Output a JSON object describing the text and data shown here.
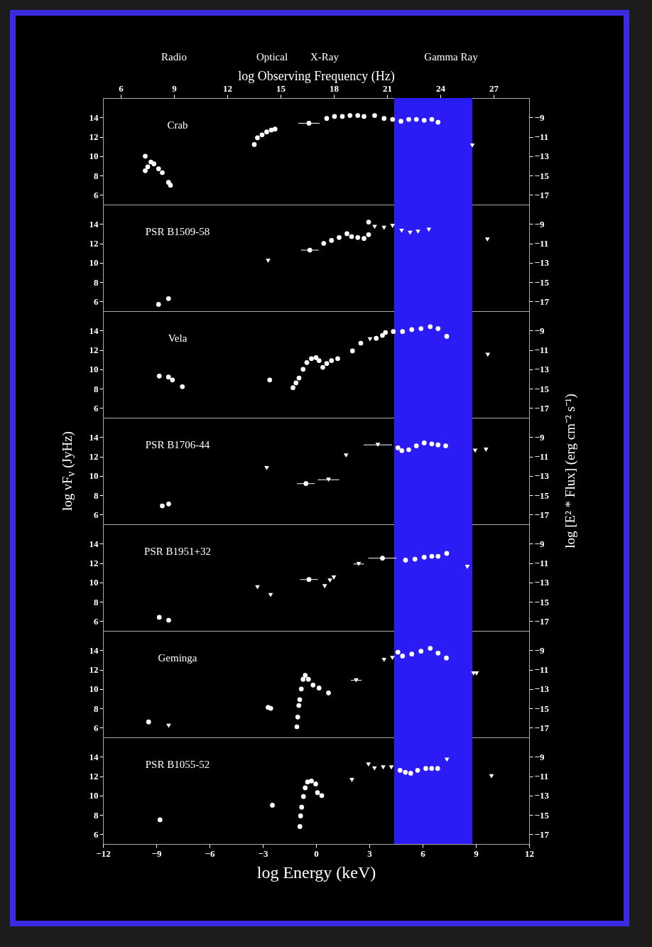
{
  "chart_data": [
    {
      "type": "scatter",
      "annotations": [
        "Crab",
        "Radio",
        "Optical",
        "X-Ray",
        "Gamma Ray"
      ],
      "x2label": "log Observing Frequency (Hz)",
      "x2lim": [
        5,
        29
      ],
      "x2ticks": [
        6,
        9,
        12,
        15,
        18,
        21,
        24,
        27
      ],
      "xlim": [
        -12,
        12
      ],
      "xticks": [
        -12,
        -9,
        -6,
        -3,
        0,
        3,
        6,
        9,
        12
      ],
      "ylim": [
        5,
        16
      ],
      "yticks": [
        6,
        8,
        10,
        12,
        14
      ],
      "y2lim": [
        -18,
        -7
      ],
      "y2ticks": [
        -17,
        -15,
        -13,
        -11,
        -9
      ],
      "tick_labels": "y",
      "bands": [
        {
          "axis": "x",
          "from": 4.4,
          "to": 8.8,
          "color": "#2b1cf5"
        }
      ],
      "series": [
        {
          "color": "#ffffff",
          "marker": "circle",
          "x": [
            -9.62,
            -9.62,
            -9.48,
            -9.3,
            -9.13,
            -8.87,
            -8.66,
            -8.31,
            -8.2,
            -3.48,
            -3.3,
            -3.04,
            -2.78,
            -2.52,
            -2.31,
            -0.4,
            0.6,
            1.04,
            1.48,
            1.91,
            2.35,
            2.7,
            3.3,
            3.83,
            4.31,
            4.78,
            5.22,
            5.65,
            6.09,
            6.52,
            6.87
          ],
          "values": [
            10.0,
            8.5,
            8.9,
            9.4,
            9.2,
            8.7,
            8.3,
            7.3,
            7.0,
            11.2,
            11.9,
            12.2,
            12.5,
            12.7,
            12.8,
            13.4,
            13.9,
            14.1,
            14.1,
            14.2,
            14.2,
            14.1,
            14.2,
            13.9,
            13.8,
            13.6,
            13.8,
            13.8,
            13.7,
            13.8,
            13.5
          ],
          "xerrors": [
            null,
            null,
            null,
            null,
            null,
            null,
            null,
            null,
            null,
            null,
            null,
            null,
            null,
            null,
            null,
            0.6,
            null,
            null,
            null,
            null,
            null,
            null,
            null,
            null,
            null,
            null,
            null,
            null,
            null,
            null,
            null
          ]
        },
        {
          "color": "#ffffff",
          "marker": "triangle",
          "x": [
            8.8
          ],
          "values": [
            11.1
          ]
        }
      ]
    },
    {
      "type": "scatter",
      "annotations": [
        "PSR B1509-58"
      ],
      "xlim": [
        -12,
        12
      ],
      "xticks": [
        -12,
        -9,
        -6,
        -3,
        0,
        3,
        6,
        9,
        12
      ],
      "ylim": [
        5,
        16
      ],
      "yticks": [
        6,
        8,
        10,
        12,
        14
      ],
      "y2lim": [
        -18,
        -7
      ],
      "y2ticks": [
        -17,
        -15,
        -13,
        -11,
        -9
      ],
      "tick_labels": "y",
      "bands": [
        {
          "axis": "x",
          "from": 4.4,
          "to": 8.8,
          "color": "#2b1cf5"
        }
      ],
      "series": [
        {
          "color": "#ffffff",
          "marker": "circle",
          "x": [
            -8.87,
            -8.31,
            -0.35,
            0.43,
            0.87,
            1.3,
            1.74,
            2.0,
            2.35,
            2.7,
            2.96,
            2.96
          ],
          "values": [
            5.7,
            6.3,
            11.3,
            12.0,
            12.3,
            12.6,
            13.0,
            12.7,
            12.6,
            12.5,
            12.9,
            14.2
          ],
          "xerrors": [
            null,
            null,
            0.5,
            null,
            null,
            null,
            null,
            null,
            null,
            null,
            null,
            null
          ]
        },
        {
          "color": "#ffffff",
          "marker": "triangle",
          "x": [
            -2.7,
            3.3,
            3.83,
            4.31,
            4.82,
            5.3,
            5.74,
            6.35,
            9.65
          ],
          "values": [
            10.2,
            13.7,
            13.6,
            13.8,
            13.3,
            13.1,
            13.2,
            13.4,
            12.4
          ]
        }
      ]
    },
    {
      "type": "scatter",
      "annotations": [
        "Vela"
      ],
      "xlim": [
        -12,
        12
      ],
      "xticks": [
        -12,
        -9,
        -6,
        -3,
        0,
        3,
        6,
        9,
        12
      ],
      "ylim": [
        5,
        16
      ],
      "yticks": [
        6,
        8,
        10,
        12,
        14
      ],
      "y2lim": [
        -18,
        -7
      ],
      "y2ticks": [
        -17,
        -15,
        -13,
        -11,
        -9
      ],
      "tick_labels": "y",
      "bands": [
        {
          "axis": "x",
          "from": 4.4,
          "to": 8.8,
          "color": "#2b1cf5"
        }
      ],
      "series": [
        {
          "color": "#ffffff",
          "marker": "circle",
          "x": [
            -8.83,
            -8.31,
            -8.09,
            -7.53,
            -2.61,
            -1.3,
            -1.13,
            -0.96,
            -0.73,
            -0.52,
            -0.26,
            0,
            0.17,
            0.38,
            0.6,
            0.87,
            1.22,
            2.05,
            2.52,
            3.39,
            3.74,
            3.91,
            4.35,
            4.87,
            5.39,
            5.91,
            6.43,
            6.87,
            7.36
          ],
          "values": [
            9.3,
            9.2,
            8.9,
            8.2,
            8.9,
            8.1,
            8.6,
            9.1,
            10.0,
            10.7,
            11.1,
            11.2,
            10.9,
            10.2,
            10.6,
            10.9,
            11.1,
            11.9,
            12.7,
            13.2,
            13.5,
            13.8,
            13.9,
            13.9,
            14.1,
            14.2,
            14.4,
            14.2,
            13.4
          ]
        },
        {
          "color": "#ffffff",
          "marker": "triangle",
          "x": [
            3.04,
            9.67
          ],
          "values": [
            13.1,
            11.5
          ]
        }
      ]
    },
    {
      "type": "scatter",
      "annotations": [
        "PSR B1706-44"
      ],
      "ylabel": "log νF$_{ν}$ (JyHz)",
      "y2label": "log [E² * Flux] (erg cm⁻² s⁻¹)",
      "xlim": [
        -12,
        12
      ],
      "xticks": [
        -12,
        -9,
        -6,
        -3,
        0,
        3,
        6,
        9,
        12
      ],
      "ylim": [
        5,
        16
      ],
      "yticks": [
        6,
        8,
        10,
        12,
        14
      ],
      "y2lim": [
        -18,
        -7
      ],
      "y2ticks": [
        -17,
        -15,
        -13,
        -11,
        -9
      ],
      "tick_labels": "y",
      "bands": [
        {
          "axis": "x",
          "from": 4.4,
          "to": 8.8,
          "color": "#2b1cf5"
        }
      ],
      "series": [
        {
          "color": "#ffffff",
          "marker": "circle",
          "x": [
            -8.66,
            -8.3,
            -0.57,
            4.61,
            4.83,
            5.22,
            5.65,
            6.09,
            6.52,
            6.87,
            7.3
          ],
          "values": [
            6.9,
            7.1,
            9.2,
            12.9,
            12.6,
            12.7,
            13.1,
            13.4,
            13.3,
            13.2,
            13.1
          ],
          "xerrors": [
            null,
            null,
            0.5,
            null,
            null,
            null,
            null,
            null,
            null,
            null,
            null
          ]
        },
        {
          "color": "#ffffff",
          "marker": "triangle",
          "x": [
            -2.78,
            0.7,
            1.69,
            3.48,
            8.96,
            9.57
          ],
          "values": [
            10.8,
            9.6,
            12.1,
            13.2,
            12.6,
            12.7
          ],
          "xerrors": [
            null,
            0.6,
            null,
            0.8,
            null,
            null
          ]
        }
      ]
    },
    {
      "type": "scatter",
      "annotations": [
        "PSR B1951+32"
      ],
      "xlim": [
        -12,
        12
      ],
      "xticks": [
        -12,
        -9,
        -6,
        -3,
        0,
        3,
        6,
        9,
        12
      ],
      "ylim": [
        5,
        16
      ],
      "yticks": [
        6,
        8,
        10,
        12,
        14
      ],
      "y2lim": [
        -18,
        -7
      ],
      "y2ticks": [
        -17,
        -15,
        -13,
        -11,
        -9
      ],
      "tick_labels": "y",
      "bands": [
        {
          "axis": "x",
          "from": 4.4,
          "to": 8.8,
          "color": "#2b1cf5"
        }
      ],
      "series": [
        {
          "color": "#ffffff",
          "marker": "circle",
          "x": [
            -8.83,
            -8.3,
            -0.4,
            3.74,
            5.04,
            5.57,
            6.09,
            6.52,
            6.87,
            7.36
          ],
          "values": [
            6.4,
            6.1,
            10.3,
            12.5,
            12.3,
            12.4,
            12.6,
            12.7,
            12.7,
            13.0
          ],
          "xerrors": [
            null,
            null,
            0.5,
            0.8,
            null,
            null,
            null,
            null,
            null,
            null
          ]
        },
        {
          "color": "#ffffff",
          "marker": "triangle",
          "x": [
            -3.3,
            -2.56,
            0.49,
            0.78,
            1.0,
            2.4,
            8.52
          ],
          "values": [
            9.5,
            8.7,
            9.6,
            10.2,
            10.5,
            11.9,
            11.6
          ],
          "xerrors": [
            null,
            null,
            null,
            null,
            null,
            0.3,
            null
          ]
        }
      ]
    },
    {
      "type": "scatter",
      "annotations": [
        "Geminga"
      ],
      "xlim": [
        -12,
        12
      ],
      "xticks": [
        -12,
        -9,
        -6,
        -3,
        0,
        3,
        6,
        9,
        12
      ],
      "ylim": [
        5,
        16
      ],
      "yticks": [
        6,
        8,
        10,
        12,
        14
      ],
      "y2lim": [
        -18,
        -7
      ],
      "y2ticks": [
        -17,
        -15,
        -13,
        -11,
        -9
      ],
      "tick_labels": "y",
      "bands": [
        {
          "axis": "x",
          "from": 4.4,
          "to": 8.8,
          "color": "#2b1cf5"
        }
      ],
      "series": [
        {
          "color": "#ffffff",
          "marker": "circle",
          "x": [
            -9.43,
            -2.7,
            -2.55,
            -1.08,
            -1.03,
            -0.97,
            -0.92,
            -0.83,
            -0.73,
            -0.61,
            -0.43,
            -0.17,
            0.17,
            0.7,
            4.61,
            4.87,
            5.39,
            5.91,
            6.43,
            6.87,
            7.34
          ],
          "values": [
            6.6,
            8.1,
            8.0,
            6.1,
            7.1,
            8.3,
            8.9,
            10.0,
            11.0,
            11.4,
            11.0,
            10.4,
            10.1,
            9.6,
            13.8,
            13.4,
            13.6,
            13.9,
            14.2,
            13.7,
            13.2
          ]
        },
        {
          "color": "#ffffff",
          "marker": "triangle",
          "x": [
            -8.3,
            2.26,
            3.83,
            4.3,
            8.87,
            9.04
          ],
          "values": [
            6.2,
            10.9,
            13.0,
            13.2,
            11.6,
            11.6
          ],
          "xerrors": [
            null,
            0.3,
            null,
            null,
            null,
            null
          ]
        }
      ]
    },
    {
      "type": "scatter",
      "annotations": [
        "PSR B1055-52"
      ],
      "xlabel": "log Energy (keV)",
      "xlim": [
        -12,
        12
      ],
      "xticks": [
        -12,
        -9,
        -6,
        -3,
        0,
        3,
        6,
        9,
        12
      ],
      "ylim": [
        5,
        16
      ],
      "yticks": [
        6,
        8,
        10,
        12,
        14
      ],
      "y2lim": [
        -18,
        -7
      ],
      "y2ticks": [
        -17,
        -15,
        -13,
        -11,
        -9
      ],
      "bands": [
        {
          "axis": "x",
          "from": 4.4,
          "to": 8.8,
          "color": "#2b1cf5"
        }
      ],
      "series": [
        {
          "color": "#ffffff",
          "marker": "circle",
          "x": [
            -8.79,
            -2.46,
            -0.91,
            -0.87,
            -0.81,
            -0.71,
            -0.61,
            -0.48,
            -0.26,
            -0.02,
            0.08,
            0.32,
            4.73,
            5.03,
            5.33,
            5.72,
            6.18,
            6.51,
            6.85
          ],
          "values": [
            7.5,
            9.0,
            6.8,
            7.9,
            8.8,
            9.9,
            10.8,
            11.4,
            11.5,
            11.2,
            10.3,
            10.0,
            12.6,
            12.4,
            12.3,
            12.6,
            12.8,
            12.8,
            12.8
          ]
        },
        {
          "color": "#ffffff",
          "marker": "triangle",
          "x": [
            2.02,
            2.95,
            3.29,
            3.78,
            4.24,
            7.37,
            9.88
          ],
          "values": [
            11.6,
            13.2,
            12.8,
            12.9,
            12.9,
            13.7,
            12.0
          ]
        }
      ]
    }
  ]
}
